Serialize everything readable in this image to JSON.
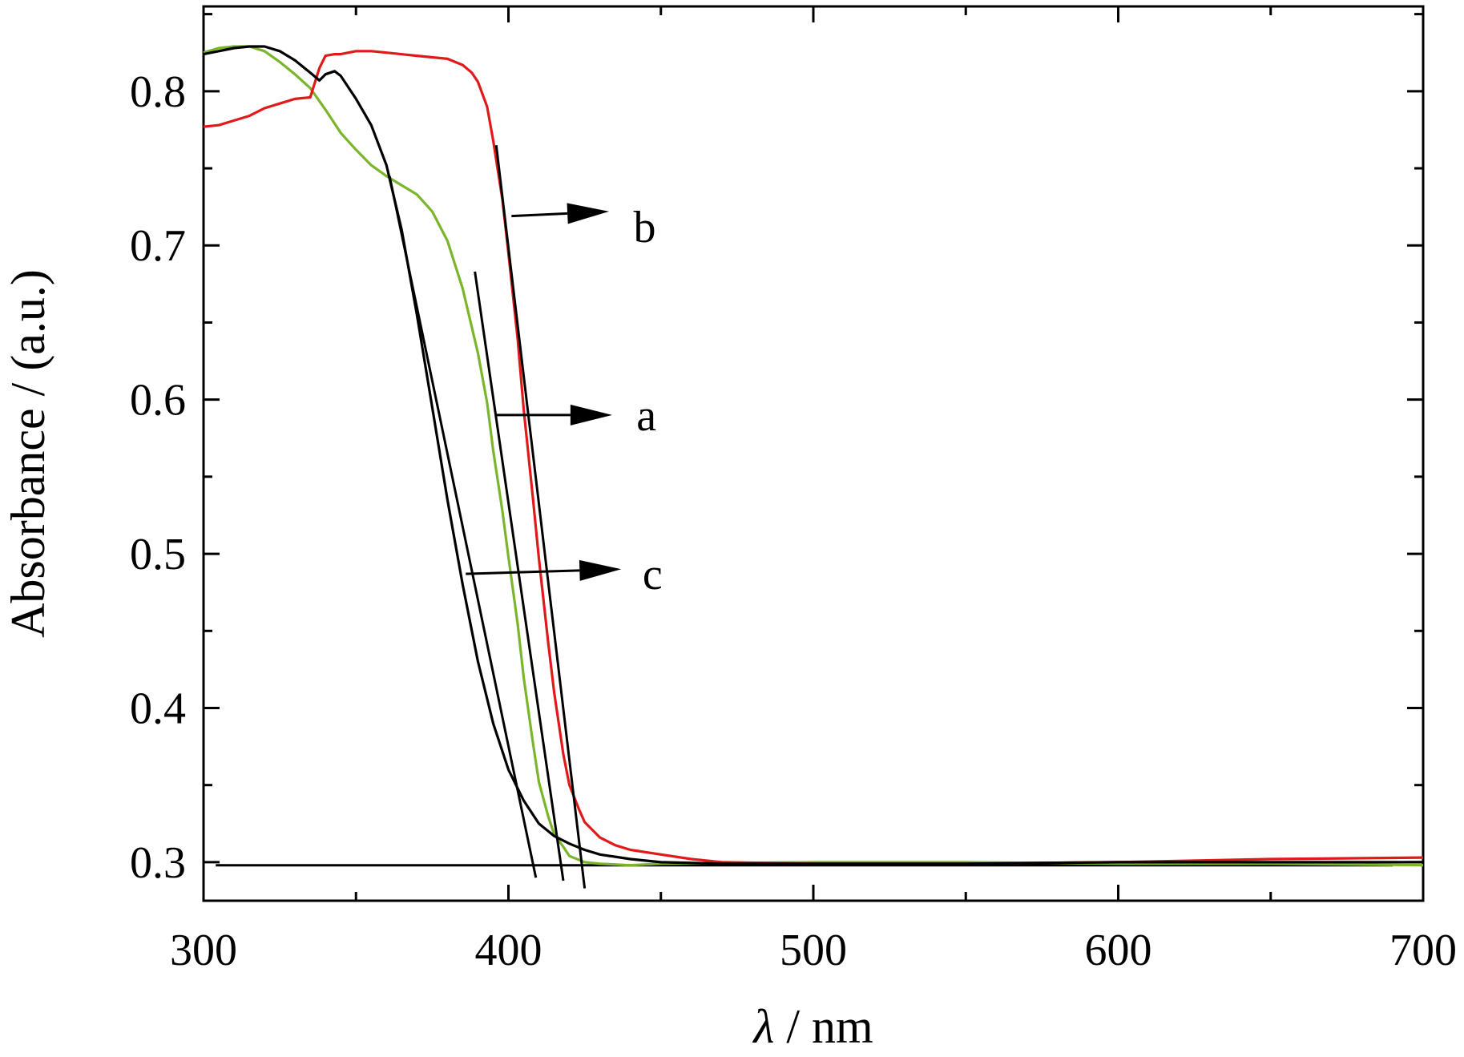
{
  "chart_data": {
    "type": "line",
    "title": "",
    "xlabel_symbol": "λ",
    "xlabel_unit": " / nm",
    "ylabel": "Absorbance / (a.u.)",
    "xlim": [
      300,
      700
    ],
    "ylim": [
      0.275,
      0.855
    ],
    "x_ticks": [
      300,
      400,
      500,
      600,
      700
    ],
    "x_tick_labels": [
      "300",
      "400",
      "500",
      "600",
      "700"
    ],
    "x_minor_ticks": [
      350,
      450,
      550,
      650
    ],
    "y_ticks": [
      0.3,
      0.4,
      0.5,
      0.6,
      0.7,
      0.8
    ],
    "y_tick_labels": [
      "0.3",
      "0.4",
      "0.5",
      "0.6",
      "0.7",
      "0.8"
    ],
    "y_minor_ticks": [
      0.35,
      0.45,
      0.55,
      0.65,
      0.75,
      0.85
    ],
    "grid": false,
    "series": [
      {
        "name": "a",
        "color": "#7ab52b",
        "x": [
          300,
          305,
          310,
          315,
          320,
          325,
          330,
          335,
          340,
          345,
          350,
          355,
          360,
          365,
          370,
          375,
          380,
          385,
          390,
          393,
          395,
          398,
          400,
          403,
          405,
          408,
          410,
          413,
          415,
          418,
          420,
          425,
          430,
          440,
          450,
          500,
          550,
          600,
          650,
          700
        ],
        "y": [
          0.825,
          0.828,
          0.829,
          0.829,
          0.826,
          0.819,
          0.811,
          0.802,
          0.788,
          0.773,
          0.762,
          0.752,
          0.745,
          0.739,
          0.733,
          0.722,
          0.703,
          0.672,
          0.63,
          0.598,
          0.567,
          0.528,
          0.498,
          0.455,
          0.42,
          0.378,
          0.352,
          0.33,
          0.318,
          0.31,
          0.304,
          0.3,
          0.299,
          0.298,
          0.299,
          0.3,
          0.3,
          0.299,
          0.299,
          0.298
        ]
      },
      {
        "name": "b",
        "color": "#e0191b",
        "x": [
          300,
          305,
          310,
          315,
          320,
          325,
          330,
          335,
          338,
          340,
          343,
          345,
          350,
          355,
          360,
          370,
          380,
          385,
          388,
          390,
          393,
          395,
          398,
          400,
          403,
          405,
          408,
          410,
          413,
          415,
          418,
          420,
          423,
          425,
          430,
          435,
          440,
          450,
          460,
          470,
          500,
          550,
          600,
          650,
          700
        ],
        "y": [
          0.777,
          0.778,
          0.781,
          0.784,
          0.789,
          0.792,
          0.795,
          0.796,
          0.815,
          0.823,
          0.824,
          0.824,
          0.826,
          0.826,
          0.825,
          0.823,
          0.821,
          0.817,
          0.812,
          0.806,
          0.79,
          0.768,
          0.73,
          0.695,
          0.64,
          0.594,
          0.537,
          0.497,
          0.443,
          0.41,
          0.37,
          0.35,
          0.335,
          0.326,
          0.316,
          0.311,
          0.308,
          0.305,
          0.302,
          0.3,
          0.299,
          0.299,
          0.3,
          0.302,
          0.303
        ]
      },
      {
        "name": "c",
        "color": "#000000",
        "x": [
          300,
          305,
          310,
          315,
          320,
          325,
          330,
          335,
          338,
          340,
          343,
          345,
          350,
          355,
          360,
          365,
          370,
          375,
          380,
          385,
          390,
          395,
          400,
          405,
          410,
          415,
          420,
          425,
          430,
          440,
          450,
          470,
          500,
          550,
          600,
          650,
          700
        ],
        "y": [
          0.824,
          0.826,
          0.828,
          0.829,
          0.829,
          0.826,
          0.82,
          0.812,
          0.807,
          0.811,
          0.813,
          0.81,
          0.795,
          0.778,
          0.752,
          0.71,
          0.655,
          0.595,
          0.535,
          0.48,
          0.43,
          0.39,
          0.36,
          0.34,
          0.325,
          0.317,
          0.312,
          0.308,
          0.305,
          0.302,
          0.3,
          0.299,
          0.299,
          0.299,
          0.3,
          0.3,
          0.3
        ]
      }
    ],
    "annotations": [
      {
        "label": "b",
        "tangent": [
          [
            396,
            0.765
          ],
          [
            425,
            0.283
          ]
        ],
        "arrow": [
          [
            401,
            0.719
          ],
          [
            433,
            0.722
          ]
        ],
        "label_pos": [
          441,
          0.712
        ]
      },
      {
        "label": "a",
        "tangent": [
          [
            389,
            0.683
          ],
          [
            418,
            0.288
          ]
        ],
        "arrow": [
          [
            396,
            0.59
          ],
          [
            434,
            0.59
          ]
        ],
        "label_pos": [
          442,
          0.59
        ]
      },
      {
        "label": "c",
        "tangent": [
          [
            361,
            0.745
          ],
          [
            409,
            0.29
          ]
        ],
        "arrow": [
          [
            386,
            0.487
          ],
          [
            437,
            0.49
          ]
        ],
        "label_pos": [
          444,
          0.487
        ]
      }
    ],
    "baseline": {
      "y": 0.298,
      "x": [
        304,
        690
      ]
    }
  }
}
